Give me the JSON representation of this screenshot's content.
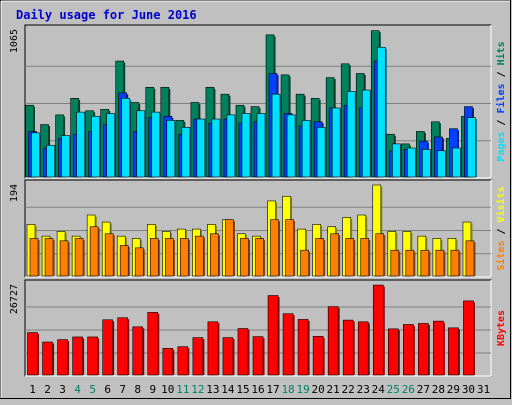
{
  "chart_data": {
    "type": "bar",
    "title": "Daily usage for June 2016",
    "categories": [
      "1",
      "2",
      "3",
      "4",
      "5",
      "6",
      "7",
      "8",
      "9",
      "10",
      "11",
      "12",
      "13",
      "14",
      "15",
      "16",
      "17",
      "18",
      "19",
      "20",
      "21",
      "22",
      "23",
      "24",
      "25",
      "26",
      "27",
      "28",
      "29",
      "30",
      "31"
    ],
    "weekend_days": [
      "4",
      "5",
      "11",
      "12",
      "18",
      "19",
      "25",
      "26"
    ],
    "panels": [
      {
        "id": "top",
        "max_label": "1065",
        "ylim": [
          0,
          1065
        ],
        "legend_entries": [
          {
            "text": "Hits",
            "color": "#00805c"
          },
          {
            "text": "Files",
            "color": "#0040ff"
          },
          {
            "text": "Pages",
            "color": "#00e0ff"
          }
        ],
        "series": [
          {
            "name": "Hits",
            "color": "#00805c",
            "values": [
              520,
              380,
              450,
              570,
              480,
              490,
              840,
              540,
              650,
              650,
              410,
              540,
              650,
              600,
              520,
              510,
              1030,
              740,
              600,
              570,
              720,
              820,
              750,
              1060,
              310,
              240,
              330,
              400,
              280,
              440,
              0
            ]
          },
          {
            "name": "Files",
            "color": "#0040ff",
            "values": [
              330,
              210,
              280,
              310,
              330,
              380,
              610,
              330,
              430,
              440,
              310,
              420,
              390,
              420,
              390,
              400,
              750,
              460,
              370,
              400,
              500,
              520,
              500,
              840,
              190,
              200,
              260,
              290,
              350,
              510,
              0
            ]
          },
          {
            "name": "Pages",
            "color": "#00e0ff",
            "values": [
              320,
              230,
              300,
              470,
              440,
              460,
              570,
              480,
              470,
              410,
              360,
              420,
              420,
              450,
              460,
              460,
              600,
              450,
              410,
              360,
              500,
              620,
              630,
              940,
              240,
              210,
              200,
              190,
              210,
              430,
              0
            ]
          }
        ]
      },
      {
        "id": "middle",
        "max_label": "194",
        "ylim": [
          0,
          194
        ],
        "legend_entries": [
          {
            "text": "Visits",
            "color": "#ffff00"
          },
          {
            "text": "Sites",
            "color": "#ff8000"
          }
        ],
        "series": [
          {
            "name": "Visits",
            "color": "#ffff00",
            "values": [
              110,
              85,
              95,
              85,
              130,
              115,
              85,
              80,
              110,
              95,
              100,
              100,
              110,
              120,
              90,
              85,
              160,
              170,
              100,
              110,
              105,
              125,
              130,
              194,
              95,
              95,
              85,
              80,
              80,
              115,
              0
            ]
          },
          {
            "name": "Sites",
            "color": "#ff8000",
            "values": [
              80,
              80,
              75,
              80,
              105,
              90,
              65,
              60,
              80,
              80,
              80,
              85,
              90,
              120,
              80,
              80,
              120,
              120,
              55,
              80,
              90,
              80,
              80,
              90,
              55,
              55,
              55,
              55,
              55,
              75,
              0
            ]
          }
        ]
      },
      {
        "id": "bottom",
        "max_label": "26727",
        "ylim": [
          0,
          26727
        ],
        "legend_entries": [
          {
            "text": "KBytes",
            "color": "#ff0000"
          }
        ],
        "series": [
          {
            "name": "KBytes",
            "color": "#ff0000",
            "values": [
              12600,
              9800,
              10500,
              11300,
              11300,
              16400,
              17000,
              14300,
              18600,
              7900,
              8400,
              11100,
              15800,
              11100,
              13800,
              11400,
              23600,
              18200,
              16500,
              11500,
              20300,
              16300,
              15800,
              26700,
              13700,
              15000,
              15300,
              16000,
              14000,
              22000,
              0
            ]
          }
        ]
      }
    ]
  }
}
